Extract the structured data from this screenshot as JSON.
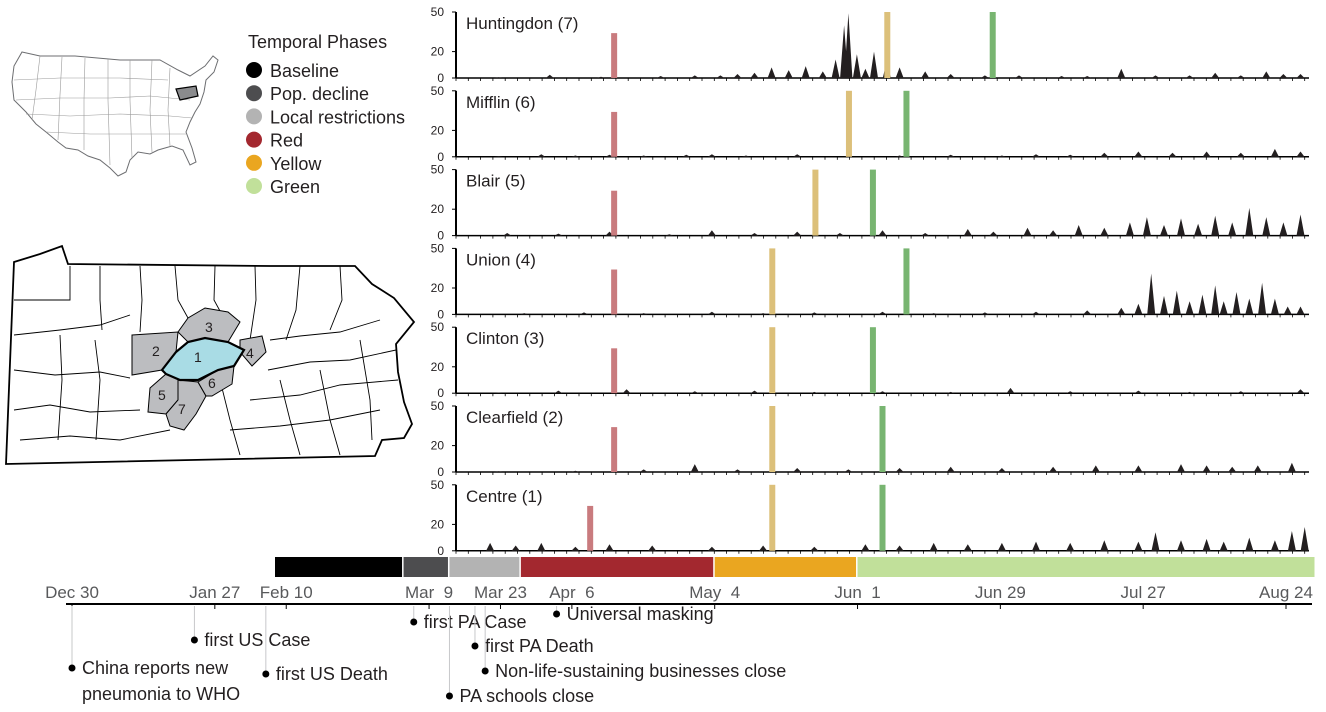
{
  "legend": {
    "title": "Temporal Phases",
    "items": [
      {
        "label": "Baseline",
        "color": "#000000"
      },
      {
        "label": "Pop. decline",
        "color": "#4d4d4f"
      },
      {
        "label": "Local restrictions",
        "color": "#b3b3b3"
      },
      {
        "label": "Red",
        "color": "#a3282f"
      },
      {
        "label": "Yellow",
        "color": "#eaa620"
      },
      {
        "label": "Green",
        "color": "#c1e09a"
      }
    ]
  },
  "county_numbers": [
    "1",
    "2",
    "3",
    "4",
    "5",
    "6",
    "7"
  ],
  "timeline": {
    "dates": [
      "Dec 30",
      "Jan 27",
      "Feb 10",
      "Mar  9",
      "Mar 23",
      "Apr  6",
      "May  4",
      "Jun  1",
      "Jun 29",
      "Jul 27",
      "Aug 24"
    ],
    "events": [
      {
        "text": "China reports new"
      },
      {
        "text": "pneumonia to WHO"
      },
      {
        "text": "first US Case"
      },
      {
        "text": "first US Death"
      },
      {
        "text": "first PA Case"
      },
      {
        "text": "PA schools close"
      },
      {
        "text": "Universal masking"
      },
      {
        "text": "first PA Death"
      },
      {
        "text": "Non-life-sustaining businesses close"
      }
    ]
  },
  "chart_data": {
    "type": "area",
    "ytick_labels": [
      "50",
      "20",
      "0"
    ],
    "y_ticks": [
      50,
      20,
      0
    ],
    "phase_colors": {
      "red": "#c97b7e",
      "yellow": "#dcc07a",
      "green": "#78b571"
    },
    "series": [
      {
        "name": "Huntingdon (7)",
        "ylim": [
          0,
          50
        ],
        "red": "Apr 1",
        "yellow": "May 28",
        "green": "Jun 19",
        "peaks": [
          [
            0.05,
            0.5
          ],
          [
            0.11,
            2.5
          ],
          [
            0.17,
            1
          ],
          [
            0.24,
            1.5
          ],
          [
            0.28,
            2
          ],
          [
            0.31,
            2
          ],
          [
            0.33,
            3
          ],
          [
            0.35,
            4
          ],
          [
            0.37,
            8
          ],
          [
            0.39,
            6
          ],
          [
            0.41,
            9
          ],
          [
            0.43,
            5
          ],
          [
            0.445,
            14
          ],
          [
            0.455,
            40
          ],
          [
            0.46,
            49
          ],
          [
            0.47,
            18
          ],
          [
            0.48,
            7
          ],
          [
            0.49,
            20
          ],
          [
            0.505,
            13
          ],
          [
            0.52,
            8
          ],
          [
            0.55,
            5
          ],
          [
            0.58,
            3
          ],
          [
            0.62,
            2
          ],
          [
            0.66,
            2
          ],
          [
            0.71,
            1.5
          ],
          [
            0.74,
            1.5
          ],
          [
            0.78,
            7
          ],
          [
            0.82,
            2
          ],
          [
            0.86,
            2
          ],
          [
            0.89,
            4
          ],
          [
            0.92,
            2
          ],
          [
            0.95,
            5
          ],
          [
            0.97,
            3
          ],
          [
            0.99,
            3
          ]
        ]
      },
      {
        "name": "Mifflin (6)",
        "ylim": [
          0,
          50
        ],
        "red": "Apr 1",
        "yellow": "May 20",
        "green": "Jun 1",
        "peaks": [
          [
            0.05,
            0.6
          ],
          [
            0.1,
            2
          ],
          [
            0.14,
            1
          ],
          [
            0.18,
            1.5
          ],
          [
            0.22,
            1
          ],
          [
            0.27,
            1.5
          ],
          [
            0.3,
            2
          ],
          [
            0.34,
            1
          ],
          [
            0.4,
            2
          ],
          [
            0.46,
            1.5
          ],
          [
            0.52,
            1
          ],
          [
            0.58,
            1.5
          ],
          [
            0.64,
            1
          ],
          [
            0.68,
            2
          ],
          [
            0.72,
            1.5
          ],
          [
            0.76,
            3
          ],
          [
            0.8,
            4
          ],
          [
            0.84,
            3
          ],
          [
            0.88,
            4
          ],
          [
            0.92,
            3
          ],
          [
            0.96,
            6
          ],
          [
            0.99,
            4
          ]
        ]
      },
      {
        "name": "Blair (5)",
        "ylim": [
          0,
          50
        ],
        "red": "Apr 1",
        "yellow": "May 13",
        "green": "May 25",
        "peaks": [
          [
            0.06,
            2
          ],
          [
            0.12,
            1.5
          ],
          [
            0.18,
            3
          ],
          [
            0.25,
            1
          ],
          [
            0.3,
            4
          ],
          [
            0.35,
            2
          ],
          [
            0.4,
            3
          ],
          [
            0.45,
            2
          ],
          [
            0.5,
            4
          ],
          [
            0.55,
            2
          ],
          [
            0.6,
            5
          ],
          [
            0.63,
            3
          ],
          [
            0.67,
            6
          ],
          [
            0.7,
            4
          ],
          [
            0.73,
            8
          ],
          [
            0.76,
            6
          ],
          [
            0.79,
            10
          ],
          [
            0.81,
            14
          ],
          [
            0.83,
            8
          ],
          [
            0.85,
            13
          ],
          [
            0.87,
            9
          ],
          [
            0.89,
            15
          ],
          [
            0.91,
            10
          ],
          [
            0.93,
            21
          ],
          [
            0.95,
            14
          ],
          [
            0.97,
            10
          ],
          [
            0.99,
            16
          ]
        ]
      },
      {
        "name": "Union (4)",
        "ylim": [
          0,
          50
        ],
        "red": "Apr 1",
        "yellow": "May 4",
        "green": "Jun 1",
        "peaks": [
          [
            0.08,
            1
          ],
          [
            0.15,
            1.5
          ],
          [
            0.22,
            1
          ],
          [
            0.3,
            2
          ],
          [
            0.36,
            1
          ],
          [
            0.42,
            1.5
          ],
          [
            0.5,
            2
          ],
          [
            0.56,
            1
          ],
          [
            0.62,
            1.5
          ],
          [
            0.68,
            2
          ],
          [
            0.74,
            3
          ],
          [
            0.78,
            5
          ],
          [
            0.8,
            8
          ],
          [
            0.815,
            31
          ],
          [
            0.83,
            14
          ],
          [
            0.845,
            18
          ],
          [
            0.86,
            10
          ],
          [
            0.875,
            15
          ],
          [
            0.89,
            22
          ],
          [
            0.9,
            10
          ],
          [
            0.915,
            17
          ],
          [
            0.93,
            12
          ],
          [
            0.945,
            24
          ],
          [
            0.96,
            12
          ],
          [
            0.975,
            6
          ],
          [
            0.99,
            6
          ]
        ]
      },
      {
        "name": "Clinton (3)",
        "ylim": [
          0,
          50
        ],
        "red": "Apr 1",
        "yellow": "May 4",
        "green": "May 25",
        "peaks": [
          [
            0.05,
            0.5
          ],
          [
            0.12,
            2
          ],
          [
            0.2,
            3
          ],
          [
            0.28,
            1.5
          ],
          [
            0.35,
            2
          ],
          [
            0.42,
            1
          ],
          [
            0.5,
            1.5
          ],
          [
            0.58,
            1
          ],
          [
            0.65,
            4
          ],
          [
            0.72,
            1.5
          ],
          [
            0.8,
            2
          ],
          [
            0.86,
            1
          ],
          [
            0.92,
            1.5
          ],
          [
            0.99,
            3
          ]
        ]
      },
      {
        "name": "Clearfield (2)",
        "ylim": [
          0,
          50
        ],
        "red": "Apr 1",
        "yellow": "May 4",
        "green": "May 27",
        "peaks": [
          [
            0.05,
            0.5
          ],
          [
            0.14,
            1
          ],
          [
            0.22,
            2
          ],
          [
            0.28,
            6
          ],
          [
            0.33,
            2
          ],
          [
            0.4,
            3
          ],
          [
            0.46,
            2
          ],
          [
            0.52,
            3
          ],
          [
            0.58,
            4
          ],
          [
            0.64,
            3
          ],
          [
            0.7,
            4
          ],
          [
            0.75,
            5
          ],
          [
            0.8,
            5
          ],
          [
            0.85,
            6
          ],
          [
            0.88,
            5
          ],
          [
            0.91,
            4
          ],
          [
            0.94,
            5
          ],
          [
            0.98,
            7
          ]
        ]
      },
      {
        "name": "Centre (1)",
        "ylim": [
          0,
          50
        ],
        "red": "Mar 27",
        "yellow": "May 4",
        "green": "May 27",
        "peaks": [
          [
            0.04,
            6
          ],
          [
            0.07,
            4
          ],
          [
            0.1,
            6
          ],
          [
            0.14,
            3
          ],
          [
            0.18,
            5
          ],
          [
            0.23,
            4
          ],
          [
            0.3,
            3
          ],
          [
            0.36,
            4
          ],
          [
            0.42,
            3
          ],
          [
            0.48,
            5
          ],
          [
            0.52,
            4
          ],
          [
            0.56,
            6
          ],
          [
            0.6,
            5
          ],
          [
            0.64,
            6
          ],
          [
            0.68,
            7
          ],
          [
            0.72,
            6
          ],
          [
            0.76,
            8
          ],
          [
            0.8,
            7
          ],
          [
            0.82,
            14
          ],
          [
            0.85,
            8
          ],
          [
            0.88,
            9
          ],
          [
            0.9,
            7
          ],
          [
            0.93,
            10
          ],
          [
            0.96,
            8
          ],
          [
            0.98,
            15
          ],
          [
            0.995,
            18
          ]
        ]
      }
    ],
    "phases_bar": [
      {
        "phase": "Baseline",
        "from": "Feb 10",
        "to": "Mar 4"
      },
      {
        "phase": "Pop. decline",
        "from": "Mar 4",
        "to": "Mar 13"
      },
      {
        "phase": "Local restrictions",
        "from": "Mar 13",
        "to": "Mar 27"
      },
      {
        "phase": "Red",
        "from": "Mar 27",
        "to": "May 4"
      },
      {
        "phase": "Yellow",
        "from": "May 4",
        "to": "Jun 1"
      },
      {
        "phase": "Green",
        "from": "Jun 1",
        "to": "Aug 24"
      }
    ]
  }
}
